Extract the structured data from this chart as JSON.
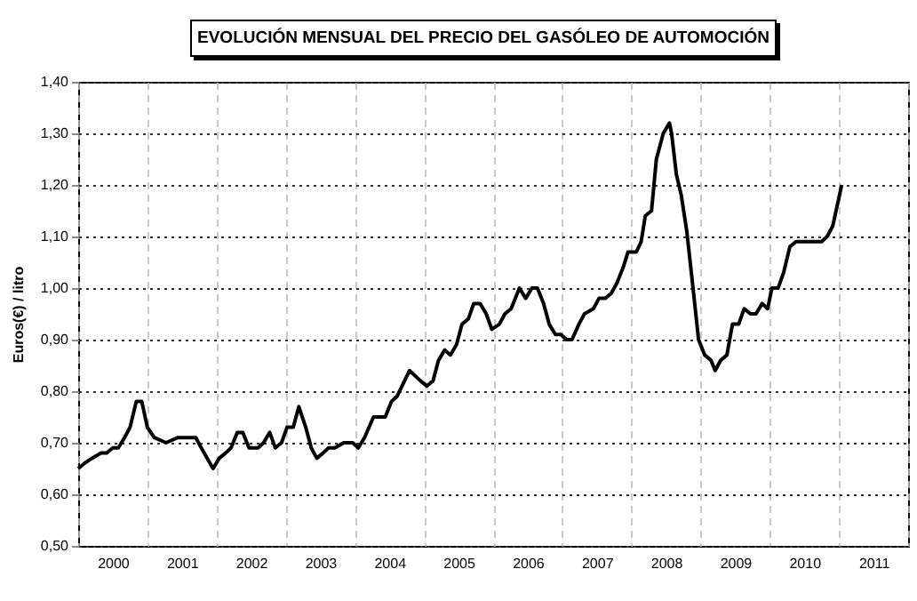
{
  "chart_data": {
    "type": "line",
    "title": "EVOLUCIÓN MENSUAL DEL PRECIO DEL GASÓLEO DE AUTOMOCIÓN",
    "ylabel": "Euros(€) / litro",
    "x": [
      2000.0,
      2000.09,
      2000.2,
      2000.33,
      2000.41,
      2000.5,
      2000.58,
      2000.67,
      2000.75,
      2000.84,
      2000.92,
      2001.0,
      2001.1,
      2001.27,
      2001.44,
      2001.53,
      2001.61,
      2001.7,
      2001.78,
      2001.95,
      2002.04,
      2002.13,
      2002.21,
      2002.3,
      2002.38,
      2002.47,
      2002.6,
      2002.68,
      2002.77,
      2002.85,
      2002.94,
      2003.02,
      2003.11,
      2003.19,
      2003.29,
      2003.37,
      2003.45,
      2003.54,
      2003.62,
      2003.71,
      2003.84,
      2003.97,
      2004.05,
      2004.14,
      2004.27,
      2004.35,
      2004.44,
      2004.53,
      2004.61,
      2004.79,
      2004.87,
      2004.95,
      2005.04,
      2005.13,
      2005.21,
      2005.3,
      2005.38,
      2005.47,
      2005.55,
      2005.64,
      2005.72,
      2005.81,
      2005.9,
      2005.98,
      2006.09,
      2006.17,
      2006.26,
      2006.38,
      2006.47,
      2006.56,
      2006.64,
      2006.73,
      2006.81,
      2006.9,
      2006.98,
      2007.06,
      2007.14,
      2007.24,
      2007.32,
      2007.45,
      2007.53,
      2007.62,
      2007.71,
      2007.79,
      2007.88,
      2007.95,
      2008.07,
      2008.14,
      2008.2,
      2008.29,
      2008.36,
      2008.46,
      2008.55,
      2008.58,
      2008.65,
      2008.72,
      2008.8,
      2008.89,
      2008.97,
      2009.06,
      2009.15,
      2009.21,
      2009.29,
      2009.38,
      2009.46,
      2009.55,
      2009.63,
      2009.72,
      2009.8,
      2009.89,
      2009.97,
      2010.03,
      2010.12,
      2010.2,
      2010.29,
      2010.38,
      2010.49,
      2010.62,
      2010.75,
      2010.83,
      2010.91,
      2011.04
    ],
    "values": [
      0.65,
      0.66,
      0.67,
      0.68,
      0.68,
      0.69,
      0.69,
      0.71,
      0.73,
      0.78,
      0.78,
      0.73,
      0.71,
      0.7,
      0.71,
      0.71,
      0.71,
      0.71,
      0.69,
      0.65,
      0.67,
      0.68,
      0.69,
      0.72,
      0.72,
      0.69,
      0.69,
      0.7,
      0.72,
      0.69,
      0.7,
      0.73,
      0.73,
      0.77,
      0.73,
      0.69,
      0.67,
      0.68,
      0.69,
      0.69,
      0.7,
      0.7,
      0.69,
      0.71,
      0.75,
      0.75,
      0.75,
      0.78,
      0.79,
      0.84,
      0.83,
      0.82,
      0.81,
      0.82,
      0.86,
      0.88,
      0.87,
      0.89,
      0.93,
      0.94,
      0.97,
      0.97,
      0.95,
      0.92,
      0.93,
      0.95,
      0.96,
      1.0,
      0.98,
      1.0,
      1.0,
      0.97,
      0.93,
      0.91,
      0.91,
      0.9,
      0.9,
      0.93,
      0.95,
      0.96,
      0.98,
      0.98,
      0.99,
      1.01,
      1.04,
      1.07,
      1.07,
      1.09,
      1.14,
      1.15,
      1.25,
      1.3,
      1.32,
      1.3,
      1.22,
      1.18,
      1.11,
      1.0,
      0.9,
      0.87,
      0.86,
      0.84,
      0.86,
      0.87,
      0.93,
      0.93,
      0.96,
      0.95,
      0.95,
      0.97,
      0.96,
      1.0,
      1.0,
      1.03,
      1.08,
      1.09,
      1.09,
      1.09,
      1.09,
      1.1,
      1.12,
      1.2
    ],
    "color": "#000000",
    "xlim": [
      2000,
      2012
    ],
    "xticks": [
      {
        "value": 2000,
        "label": null
      },
      {
        "value": 2000.5,
        "label": "2000"
      },
      {
        "value": 2001,
        "label": null
      },
      {
        "value": 2001.5,
        "label": "2001"
      },
      {
        "value": 2002,
        "label": null
      },
      {
        "value": 2002.5,
        "label": "2002"
      },
      {
        "value": 2003,
        "label": null
      },
      {
        "value": 2003.5,
        "label": "2003"
      },
      {
        "value": 2004,
        "label": null
      },
      {
        "value": 2004.5,
        "label": "2004"
      },
      {
        "value": 2005,
        "label": null
      },
      {
        "value": 2005.5,
        "label": "2005"
      },
      {
        "value": 2006,
        "label": null
      },
      {
        "value": 2006.5,
        "label": "2006"
      },
      {
        "value": 2007,
        "label": null
      },
      {
        "value": 2007.5,
        "label": "2007"
      },
      {
        "value": 2008,
        "label": null
      },
      {
        "value": 2008.5,
        "label": "2008"
      },
      {
        "value": 2009,
        "label": null
      },
      {
        "value": 2009.5,
        "label": "2009"
      },
      {
        "value": 2010,
        "label": null
      },
      {
        "value": 2010.5,
        "label": "2010"
      },
      {
        "value": 2011,
        "label": null
      },
      {
        "value": 2011.5,
        "label": "2011"
      },
      {
        "value": 2012,
        "label": null
      }
    ],
    "ylim": [
      0.5,
      1.4
    ],
    "yticks": [
      {
        "value": 0.5,
        "label": "0,50"
      },
      {
        "value": 0.6,
        "label": "0,60"
      },
      {
        "value": 0.7,
        "label": "0,70"
      },
      {
        "value": 0.8,
        "label": "0,80"
      },
      {
        "value": 0.9,
        "label": "0,90"
      },
      {
        "value": 1.0,
        "label": "1,00"
      },
      {
        "value": 1.1,
        "label": "1,10"
      },
      {
        "value": 1.2,
        "label": "1,20"
      },
      {
        "value": 1.3,
        "label": "1,30"
      },
      {
        "value": 1.4,
        "label": "1,40"
      }
    ],
    "grid": true,
    "marker": "none",
    "line_style": "solid"
  }
}
